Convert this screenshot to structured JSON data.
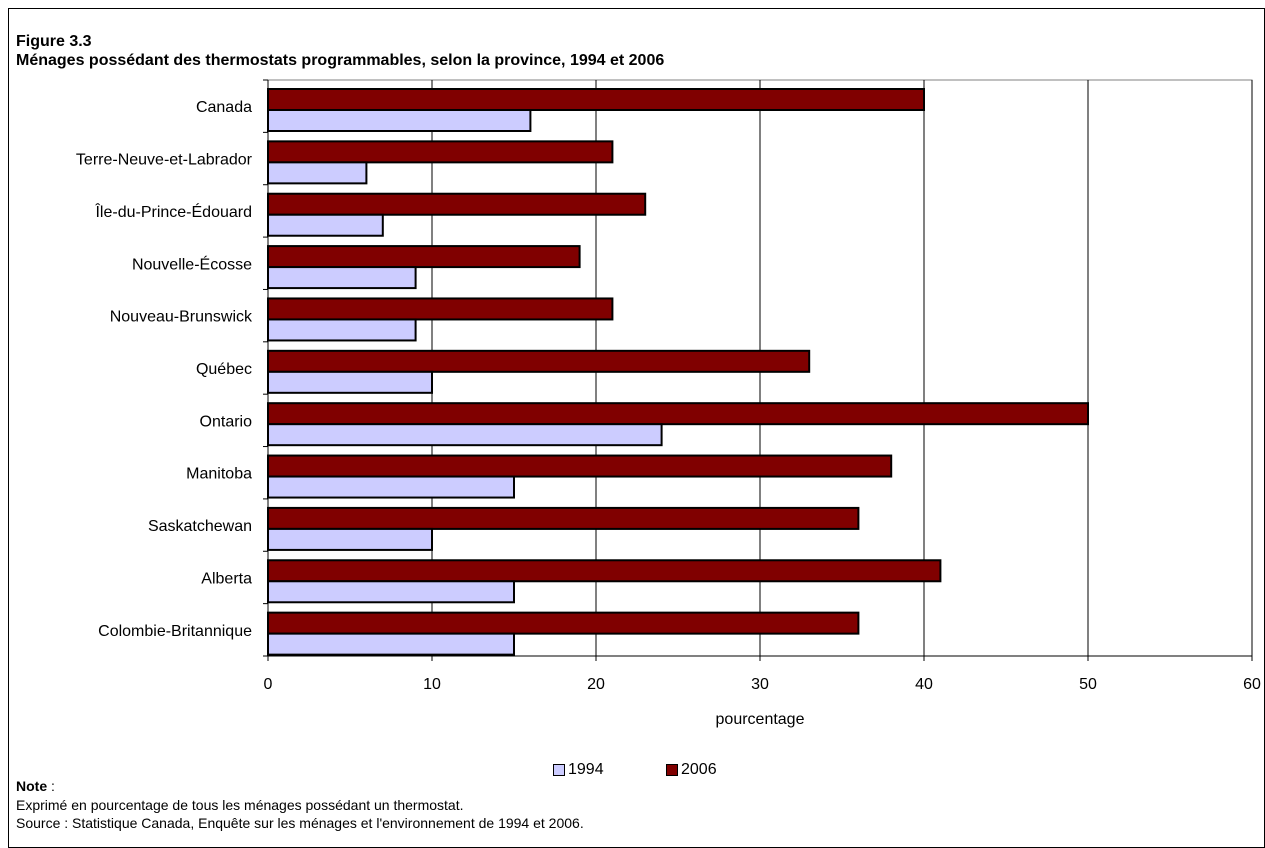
{
  "figure": {
    "number": "Figure 3.3",
    "title": "Ménages possédant des thermostats programmables, selon la province, 1994 et 2006"
  },
  "note": {
    "label": "Note",
    "suffix": " :",
    "line1": "Exprimé en pourcentage de tous les ménages possédant un thermostat.",
    "line2": "Source : Statistique Canada, Enquête sur les ménages et l'environnement de 1994 et 2006."
  },
  "colors": {
    "series_1994": "#ccccff",
    "series_2006": "#800000",
    "plot_bg": "#ffffff",
    "grid": "#000000"
  },
  "chart_data": {
    "type": "bar",
    "orientation": "horizontal",
    "xlabel": "pourcentage",
    "ylabel": "",
    "xlim": [
      0,
      60
    ],
    "xticks": [
      0,
      10,
      20,
      30,
      40,
      50,
      60
    ],
    "grid": true,
    "legend_position": "bottom",
    "categories": [
      "Canada",
      "Terre-Neuve-et-Labrador",
      "Île-du-Prince-Édouard",
      "Nouvelle-Écosse",
      "Nouveau-Brunswick",
      "Québec",
      "Ontario",
      "Manitoba",
      "Saskatchewan",
      "Alberta",
      "Colombie-Britannique"
    ],
    "series": [
      {
        "name": "2006",
        "values": [
          40,
          21,
          23,
          19,
          21,
          33,
          50,
          38,
          36,
          41,
          36
        ]
      },
      {
        "name": "1994",
        "values": [
          16,
          6,
          7,
          9,
          9,
          10,
          24,
          15,
          10,
          15,
          15
        ]
      }
    ]
  }
}
